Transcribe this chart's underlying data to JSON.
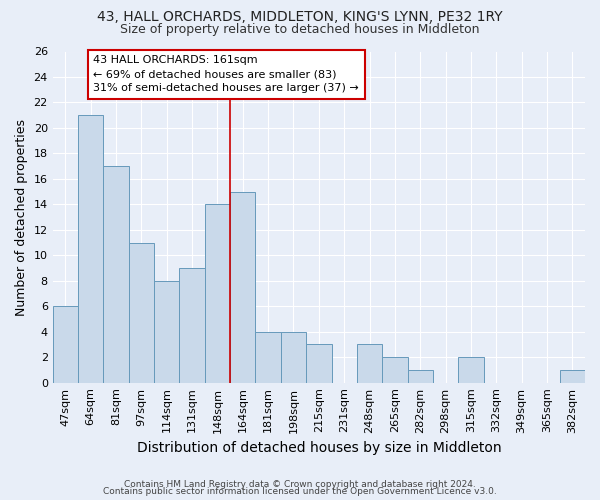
{
  "title": "43, HALL ORCHARDS, MIDDLETON, KING'S LYNN, PE32 1RY",
  "subtitle": "Size of property relative to detached houses in Middleton",
  "xlabel": "Distribution of detached houses by size in Middleton",
  "ylabel": "Number of detached properties",
  "categories": [
    "47sqm",
    "64sqm",
    "81sqm",
    "97sqm",
    "114sqm",
    "131sqm",
    "148sqm",
    "164sqm",
    "181sqm",
    "198sqm",
    "215sqm",
    "231sqm",
    "248sqm",
    "265sqm",
    "282sqm",
    "298sqm",
    "315sqm",
    "332sqm",
    "349sqm",
    "365sqm",
    "382sqm"
  ],
  "values": [
    6,
    21,
    17,
    11,
    8,
    9,
    14,
    15,
    4,
    4,
    3,
    0,
    3,
    2,
    1,
    0,
    2,
    0,
    0,
    0,
    1
  ],
  "bar_color": "#c9d9ea",
  "bar_edge_color": "#6699bb",
  "highlight_index": 7,
  "highlight_line_color": "#cc0000",
  "annotation_text": "43 HALL ORCHARDS: 161sqm\n← 69% of detached houses are smaller (83)\n31% of semi-detached houses are larger (37) →",
  "annotation_box_color": "#ffffff",
  "annotation_box_edge_color": "#cc0000",
  "ylim": [
    0,
    26
  ],
  "yticks": [
    0,
    2,
    4,
    6,
    8,
    10,
    12,
    14,
    16,
    18,
    20,
    22,
    24,
    26
  ],
  "background_color": "#e8eef8",
  "grid_color": "#ffffff",
  "footer_line1": "Contains HM Land Registry data © Crown copyright and database right 2024.",
  "footer_line2": "Contains public sector information licensed under the Open Government Licence v3.0.",
  "title_fontsize": 10,
  "subtitle_fontsize": 9,
  "xlabel_fontsize": 10,
  "ylabel_fontsize": 9,
  "tick_fontsize": 8,
  "annotation_fontsize": 8
}
